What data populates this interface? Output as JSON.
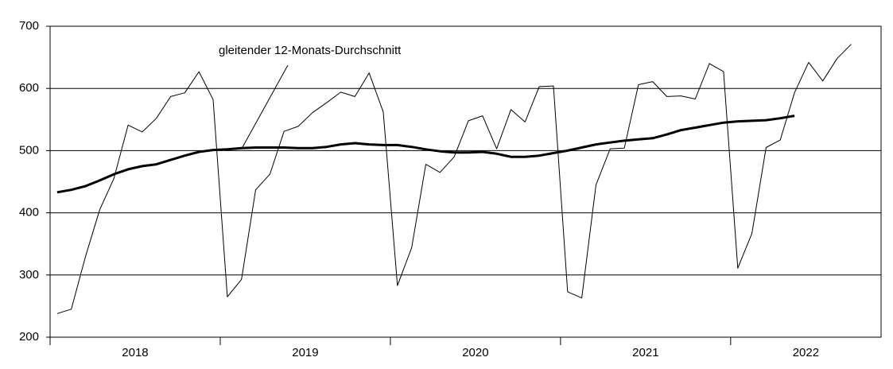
{
  "chart_data": {
    "type": "line",
    "annotation": "gleitender 12-Monats-Durchschnitt",
    "x_labels": [
      "2018",
      "2019",
      "2020",
      "2021",
      "2022"
    ],
    "series": [
      {
        "color": "#000000",
        "line_width": 1,
        "values": [
          238,
          245,
          330,
          405,
          455,
          541,
          530,
          552,
          587,
          593,
          627,
          582,
          265,
          293,
          437,
          462,
          531,
          539,
          561,
          577,
          594,
          587,
          625,
          562,
          283,
          344,
          478,
          465,
          490,
          548,
          556,
          503,
          566,
          546,
          603,
          604,
          273,
          263,
          445,
          503,
          504,
          606,
          611,
          587,
          588,
          583,
          640,
          627,
          311,
          367,
          505,
          517,
          593,
          642,
          612,
          648,
          671
        ]
      },
      {
        "color": "#000000",
        "line_width": 3,
        "values": [
          433,
          437,
          443,
          452,
          462,
          470,
          475,
          478,
          485,
          492,
          498,
          501,
          502,
          504,
          505,
          505,
          505,
          504,
          504,
          506,
          510,
          512,
          510,
          509,
          509,
          506,
          502,
          499,
          497,
          497,
          498,
          495,
          490,
          490,
          492,
          496,
          500,
          505,
          510,
          513,
          516,
          518,
          520,
          526,
          533,
          537,
          541,
          545,
          547,
          548,
          549,
          552,
          556,
          null,
          null,
          null,
          null
        ]
      }
    ],
    "ylim": [
      200,
      700
    ],
    "yticks": [
      200,
      300,
      400,
      500,
      600,
      700
    ],
    "grid": true
  }
}
